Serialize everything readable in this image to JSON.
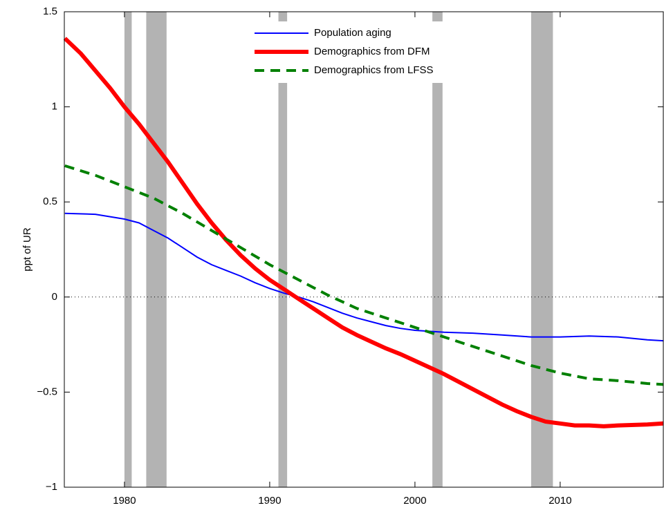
{
  "chart_data": {
    "type": "line",
    "ylabel": "ppt of UR",
    "xlim": [
      1975.86,
      2017.1
    ],
    "xticks": [
      1980,
      1990,
      2000,
      2010
    ],
    "ylim": [
      -1,
      1.5
    ],
    "yticks": [
      {
        "value": -1,
        "label": "−1"
      },
      {
        "value": -0.5,
        "label": "−0.5"
      },
      0,
      0.5,
      1,
      1.5
    ],
    "zero_line": 0,
    "recessions": [
      [
        1980.0,
        1980.5
      ],
      [
        1981.5,
        1982.9
      ],
      [
        1990.6,
        1991.2
      ],
      [
        2001.2,
        2001.9
      ],
      [
        2008.0,
        2009.5
      ]
    ],
    "recession_color": "#b3b3b3",
    "series": [
      {
        "name": "Population aging",
        "color": "#0000ff",
        "width": 2,
        "dash": "none",
        "x": [
          1975.9,
          1978,
          1980,
          1981,
          1982,
          1983,
          1984,
          1985,
          1986,
          1987,
          1988,
          1989,
          1990,
          1991,
          1992,
          1993,
          1994,
          1995,
          1996,
          1997,
          1998,
          1999,
          2000,
          2002,
          2004,
          2006,
          2008,
          2010,
          2012,
          2014,
          2016,
          2017.1
        ],
        "values": [
          0.44,
          0.435,
          0.41,
          0.39,
          0.35,
          0.31,
          0.26,
          0.21,
          0.17,
          0.14,
          0.11,
          0.075,
          0.045,
          0.02,
          0.0,
          -0.025,
          -0.055,
          -0.085,
          -0.11,
          -0.13,
          -0.15,
          -0.165,
          -0.175,
          -0.185,
          -0.19,
          -0.2,
          -0.21,
          -0.21,
          -0.205,
          -0.21,
          -0.225,
          -0.23
        ]
      },
      {
        "name": "Demographics from DFM",
        "color": "#ff0000",
        "width": 6,
        "dash": "none",
        "x": [
          1975.9,
          1977,
          1978,
          1979,
          1980,
          1981,
          1982,
          1983,
          1984,
          1985,
          1986,
          1987,
          1988,
          1989,
          1990,
          1991,
          1992,
          1993,
          1994,
          1995,
          1996,
          1997,
          1998,
          1999,
          2000,
          2001,
          2002,
          2003,
          2004,
          2005,
          2006,
          2007,
          2008,
          2009,
          2010,
          2011,
          2012,
          2013,
          2014,
          2016,
          2017.1
        ],
        "values": [
          1.36,
          1.28,
          1.19,
          1.1,
          1.0,
          0.91,
          0.81,
          0.71,
          0.6,
          0.49,
          0.39,
          0.3,
          0.22,
          0.15,
          0.09,
          0.04,
          -0.01,
          -0.06,
          -0.11,
          -0.16,
          -0.2,
          -0.235,
          -0.27,
          -0.3,
          -0.335,
          -0.37,
          -0.405,
          -0.445,
          -0.485,
          -0.525,
          -0.565,
          -0.6,
          -0.63,
          -0.655,
          -0.665,
          -0.675,
          -0.675,
          -0.68,
          -0.675,
          -0.67,
          -0.665
        ]
      },
      {
        "name": "Demographics from LFSS",
        "color": "#008000",
        "width": 4,
        "dash": "14 9",
        "x": [
          1975.9,
          1978,
          1980,
          1982,
          1984,
          1986,
          1988,
          1990,
          1992,
          1994,
          1996,
          1998,
          2000,
          2002,
          2004,
          2006,
          2008,
          2010,
          2012,
          2014,
          2016,
          2017.1
        ],
        "values": [
          0.69,
          0.64,
          0.58,
          0.52,
          0.44,
          0.35,
          0.26,
          0.17,
          0.09,
          0.01,
          -0.06,
          -0.11,
          -0.16,
          -0.21,
          -0.26,
          -0.31,
          -0.36,
          -0.4,
          -0.43,
          -0.44,
          -0.455,
          -0.46
        ]
      }
    ]
  }
}
